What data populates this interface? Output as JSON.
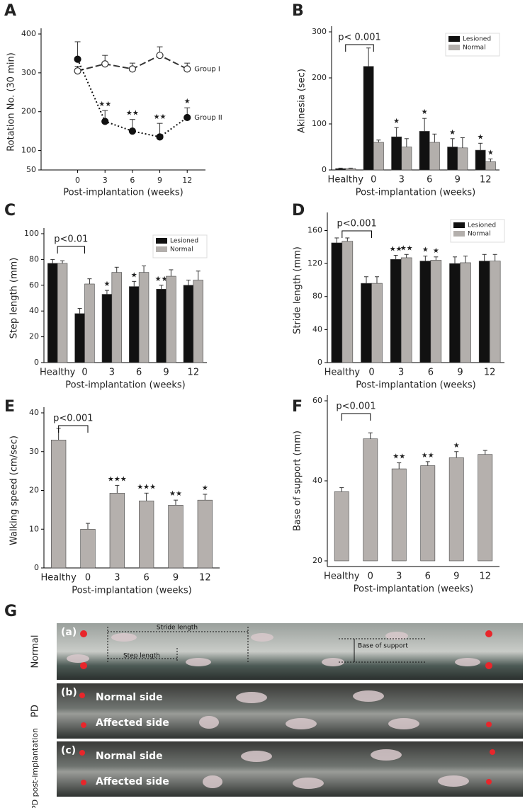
{
  "chart_data": [
    {
      "panel": "A",
      "type": "line",
      "xlabel": "Post-implantation (weeks)",
      "ylabel": "Rotation No. (30 min)",
      "x": [
        0,
        3,
        6,
        9,
        12
      ],
      "xlim": [
        -4,
        14
      ],
      "xticks": [
        0,
        3,
        6,
        9,
        12
      ],
      "ylim": [
        50,
        400
      ],
      "yticks": [
        50,
        100,
        200,
        300,
        400
      ],
      "series": [
        {
          "name": "Group I",
          "color": "#333333",
          "marker": "open",
          "line_style": "dashed",
          "values": [
            305,
            323,
            310,
            345,
            310
          ],
          "errors": [
            12,
            22,
            15,
            22,
            15
          ]
        },
        {
          "name": "Group II",
          "color": "#111111",
          "marker": "filled",
          "line_style": "dotted",
          "values": [
            335,
            175,
            150,
            135,
            185
          ],
          "errors": [
            45,
            28,
            30,
            35,
            25
          ],
          "star_labels": [
            null,
            "★★",
            "★★",
            "★★",
            "★"
          ]
        }
      ]
    },
    {
      "panel": "B",
      "type": "bar",
      "xlabel": "Post-implantation (weeks)",
      "ylabel": "Akinesia (sec)",
      "p_annotation": "p< 0.001",
      "categories": [
        "Healthy",
        "0",
        "3",
        "6",
        "9",
        "12"
      ],
      "ylim": [
        0,
        300
      ],
      "yticks": [
        0,
        100,
        200,
        300
      ],
      "legend": "upper right",
      "series": [
        {
          "name": "Lesioned",
          "color": "#111111",
          "values": [
            3,
            225,
            72,
            84,
            50,
            43
          ],
          "errors": [
            1,
            40,
            20,
            28,
            18,
            15
          ],
          "star_labels": [
            null,
            null,
            "★",
            "★",
            "★",
            "★"
          ]
        },
        {
          "name": "Normal",
          "color": "#b3afac",
          "values": [
            3,
            60,
            50,
            60,
            48,
            18
          ],
          "errors": [
            1,
            5,
            18,
            18,
            22,
            6
          ],
          "star_labels": [
            null,
            null,
            null,
            null,
            null,
            "★"
          ]
        }
      ]
    },
    {
      "panel": "C",
      "type": "bar",
      "xlabel": "Post-implantation (weeks)",
      "ylabel": "Step length (mm)",
      "p_annotation": "p<0.01",
      "categories": [
        "Healthy",
        "0",
        "3",
        "6",
        "9",
        "12"
      ],
      "ylim": [
        0,
        100
      ],
      "yticks": [
        0,
        20,
        40,
        60,
        80,
        100
      ],
      "legend": "upper right",
      "series": [
        {
          "name": "Lesioned",
          "color": "#111111",
          "values": [
            77,
            38,
            53,
            59,
            57,
            60
          ],
          "errors": [
            3,
            4,
            3,
            4,
            3,
            4
          ],
          "star_labels": [
            null,
            null,
            "★",
            "★",
            "★★",
            null
          ]
        },
        {
          "name": "Normal",
          "color": "#b3afac",
          "values": [
            77,
            61,
            70,
            70,
            67,
            64
          ],
          "errors": [
            2,
            4,
            4,
            5,
            5,
            7
          ]
        }
      ]
    },
    {
      "panel": "D",
      "type": "bar",
      "xlabel": "Post-implantation (weeks)",
      "ylabel": "Stride length (mm)",
      "p_annotation": "p<0.001",
      "categories": [
        "Healthy",
        "0",
        "3",
        "6",
        "9",
        "12"
      ],
      "ylim": [
        0,
        175
      ],
      "yticks": [
        0,
        40,
        80,
        120,
        160
      ],
      "legend": "upper right",
      "series": [
        {
          "name": "Lesioned",
          "color": "#111111",
          "values": [
            145,
            96,
            125,
            123,
            120,
            123
          ],
          "errors": [
            6,
            8,
            5,
            6,
            8,
            8
          ],
          "star_labels": [
            null,
            null,
            "★★",
            "★",
            null,
            null
          ]
        },
        {
          "name": "Normal",
          "color": "#b3afac",
          "values": [
            147,
            96,
            127,
            124,
            121,
            123
          ],
          "errors": [
            4,
            8,
            4,
            4,
            8,
            8
          ],
          "star_labels": [
            null,
            null,
            "★★",
            "★",
            null,
            null
          ]
        }
      ]
    },
    {
      "panel": "E",
      "type": "bar",
      "xlabel": "Post-implantation (weeks)",
      "ylabel": "Walking speed (cm/sec)",
      "p_annotation": "p<0.001",
      "categories": [
        "Healthy",
        "0",
        "3",
        "6",
        "9",
        "12"
      ],
      "ylim": [
        0,
        40
      ],
      "yticks": [
        0,
        10,
        20,
        30,
        40
      ],
      "color": "#b5b0ad",
      "values": [
        33,
        10,
        19.3,
        17.3,
        16.2,
        17.5
      ],
      "errors": [
        3,
        1.5,
        2,
        2,
        1.3,
        1.5
      ],
      "star_labels": [
        null,
        null,
        "★★★",
        "★★★",
        "★★",
        "★"
      ]
    },
    {
      "panel": "F",
      "type": "bar",
      "xlabel": "Post-implantation (weeks)",
      "ylabel": "Base of support (mm)",
      "p_annotation": "p<0.001",
      "categories": [
        "Healthy",
        "0",
        "3",
        "6",
        "9",
        "12"
      ],
      "ylim": [
        20,
        60
      ],
      "yticks": [
        20,
        40,
        60
      ],
      "color": "#b5b0ad",
      "values": [
        37.3,
        50.5,
        43,
        43.8,
        45.8,
        46.6
      ],
      "errors": [
        1,
        1.5,
        1.5,
        1,
        1.5,
        1
      ],
      "star_labels": [
        null,
        null,
        "★★",
        "★★",
        "★",
        null
      ]
    }
  ],
  "panel_g": {
    "label": "G",
    "rows": [
      {
        "label": "Normal",
        "tag": "(a)",
        "annotations": [
          "Stride length",
          "Step length",
          "Base of support"
        ]
      },
      {
        "label": "PD",
        "tag": "(b)",
        "annotations": [
          "Normal side",
          "Affected side"
        ]
      },
      {
        "label": "PD post-implantation",
        "tag": "(c)",
        "annotations": [
          "Normal side",
          "Affected side"
        ]
      }
    ]
  }
}
